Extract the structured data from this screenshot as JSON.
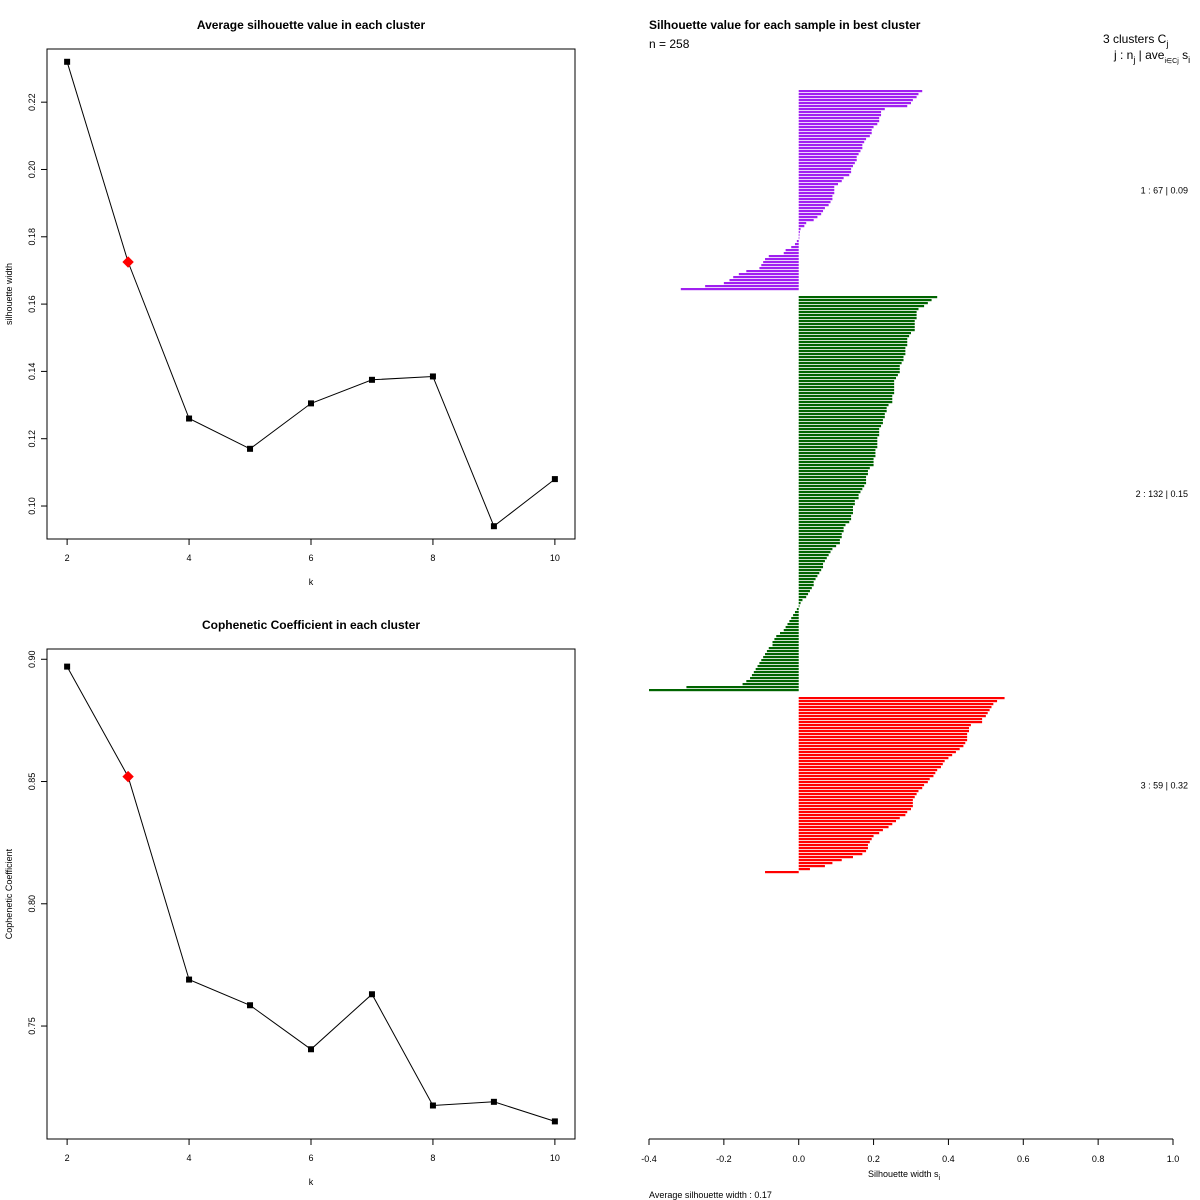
{
  "chart_data": [
    {
      "type": "line",
      "title": "Average silhouette value in each cluster",
      "xlabel": "k",
      "ylabel": "silhouette width",
      "x": [
        2,
        3,
        4,
        5,
        6,
        7,
        8,
        9,
        10
      ],
      "y": [
        0.232,
        0.1725,
        0.126,
        0.117,
        0.1305,
        0.1375,
        0.1385,
        0.094,
        0.108
      ],
      "highlight_x": 3,
      "highlight_color": "#ff0000",
      "xlim": [
        1.67,
        10.33
      ],
      "ylim": [
        0.0902,
        0.2358
      ],
      "xticks": [
        2,
        4,
        6,
        8,
        10
      ],
      "yticks": [
        0.1,
        0.12,
        0.14,
        0.16,
        0.18,
        0.2,
        0.22
      ],
      "xtick_labels": [
        "2",
        "4",
        "6",
        "8",
        "10"
      ],
      "ytick_labels": [
        "0.10",
        "0.12",
        "0.14",
        "0.16",
        "0.18",
        "0.20",
        "0.22"
      ]
    },
    {
      "type": "line",
      "title": "Cophenetic Coefficient in each cluster",
      "xlabel": "k",
      "ylabel": "Cophenetic Coefficient",
      "x": [
        2,
        3,
        4,
        5,
        6,
        7,
        8,
        9,
        10
      ],
      "y": [
        0.897,
        0.852,
        0.769,
        0.7585,
        0.7405,
        0.763,
        0.7175,
        0.719,
        0.711
      ],
      "highlight_x": 3,
      "highlight_color": "#ff0000",
      "xlim": [
        1.67,
        10.33
      ],
      "ylim": [
        0.7038,
        0.9042
      ],
      "xticks": [
        2,
        4,
        6,
        8,
        10
      ],
      "yticks": [
        0.75,
        0.8,
        0.85,
        0.9
      ],
      "xtick_labels": [
        "2",
        "4",
        "6",
        "8",
        "10"
      ],
      "ytick_labels": [
        "0.75",
        "0.80",
        "0.85",
        "0.90"
      ]
    },
    {
      "type": "bar",
      "orientation": "horizontal",
      "title": "Silhouette value for each sample in best cluster",
      "subtitle": "n = 258",
      "header_line1": "3  clusters  C",
      "header_line1_sub": "j",
      "header_line2": "j :  n",
      "header_line2_sub": "j",
      "header_line2_rest": " | ave",
      "header_line2_sub2": "i∈Cj",
      "header_line2_end": " s",
      "header_line2_sub3": "i",
      "xlabel": "Silhouette width s",
      "xlabel_sub": "i",
      "footer": "Average silhouette width :  0.17",
      "xlim": [
        -0.4,
        1.0
      ],
      "xticks": [
        -0.4,
        -0.2,
        0.0,
        0.2,
        0.4,
        0.6,
        0.8,
        1.0
      ],
      "xtick_labels": [
        "-0.4",
        "-0.2",
        "0.0",
        "0.2",
        "0.4",
        "0.6",
        "0.8",
        "1.0"
      ],
      "series": [
        {
          "cluster": 1,
          "n": 67,
          "avg": 0.09,
          "label": "1 :   67  |  0.09",
          "color": "#a020f0",
          "values": [
            0.33,
            0.32,
            0.315,
            0.305,
            0.3,
            0.29,
            0.23,
            0.22,
            0.22,
            0.215,
            0.215,
            0.21,
            0.2,
            0.195,
            0.195,
            0.19,
            0.18,
            0.175,
            0.17,
            0.17,
            0.165,
            0.16,
            0.155,
            0.155,
            0.15,
            0.145,
            0.14,
            0.14,
            0.135,
            0.12,
            0.115,
            0.105,
            0.095,
            0.095,
            0.095,
            0.09,
            0.09,
            0.085,
            0.08,
            0.07,
            0.065,
            0.06,
            0.05,
            0.04,
            0.02,
            0.015,
            0.005,
            0.003,
            0.002,
            0.001,
            -0.005,
            -0.01,
            -0.02,
            -0.035,
            -0.04,
            -0.08,
            -0.09,
            -0.095,
            -0.1,
            -0.105,
            -0.14,
            -0.16,
            -0.175,
            -0.185,
            -0.2,
            -0.25,
            -0.315
          ]
        },
        {
          "cluster": 2,
          "n": 132,
          "avg": 0.15,
          "label": "2 :   132  |  0.15",
          "color": "#006400",
          "values": [
            0.37,
            0.355,
            0.345,
            0.335,
            0.32,
            0.315,
            0.315,
            0.315,
            0.31,
            0.31,
            0.31,
            0.31,
            0.3,
            0.295,
            0.29,
            0.29,
            0.29,
            0.285,
            0.285,
            0.285,
            0.28,
            0.28,
            0.275,
            0.27,
            0.27,
            0.27,
            0.265,
            0.26,
            0.255,
            0.255,
            0.255,
            0.255,
            0.255,
            0.25,
            0.25,
            0.25,
            0.24,
            0.235,
            0.235,
            0.23,
            0.23,
            0.225,
            0.225,
            0.22,
            0.215,
            0.215,
            0.215,
            0.21,
            0.21,
            0.21,
            0.21,
            0.205,
            0.205,
            0.205,
            0.2,
            0.2,
            0.2,
            0.19,
            0.185,
            0.185,
            0.18,
            0.18,
            0.18,
            0.175,
            0.17,
            0.165,
            0.16,
            0.16,
            0.15,
            0.15,
            0.145,
            0.145,
            0.145,
            0.14,
            0.14,
            0.135,
            0.125,
            0.12,
            0.12,
            0.115,
            0.115,
            0.11,
            0.11,
            0.1,
            0.09,
            0.085,
            0.08,
            0.075,
            0.07,
            0.065,
            0.065,
            0.06,
            0.055,
            0.05,
            0.045,
            0.04,
            0.04,
            0.035,
            0.03,
            0.025,
            0.02,
            0.01,
            0.005,
            0.002,
            -0.005,
            -0.01,
            -0.015,
            -0.02,
            -0.025,
            -0.03,
            -0.035,
            -0.04,
            -0.05,
            -0.06,
            -0.065,
            -0.07,
            -0.07,
            -0.08,
            -0.085,
            -0.09,
            -0.095,
            -0.1,
            -0.105,
            -0.11,
            -0.115,
            -0.12,
            -0.125,
            -0.13,
            -0.14,
            -0.15,
            -0.3,
            -0.4
          ]
        },
        {
          "cluster": 3,
          "n": 59,
          "avg": 0.32,
          "label": "3 :   59  |  0.32",
          "color": "#ff0000",
          "values": [
            0.55,
            0.53,
            0.52,
            0.515,
            0.51,
            0.505,
            0.5,
            0.49,
            0.49,
            0.46,
            0.455,
            0.455,
            0.45,
            0.45,
            0.45,
            0.445,
            0.44,
            0.43,
            0.42,
            0.41,
            0.4,
            0.39,
            0.385,
            0.38,
            0.37,
            0.365,
            0.36,
            0.35,
            0.345,
            0.335,
            0.33,
            0.32,
            0.315,
            0.31,
            0.305,
            0.305,
            0.305,
            0.3,
            0.29,
            0.285,
            0.27,
            0.26,
            0.25,
            0.24,
            0.225,
            0.215,
            0.2,
            0.195,
            0.19,
            0.185,
            0.185,
            0.18,
            0.17,
            0.145,
            0.115,
            0.09,
            0.07,
            0.03,
            -0.09
          ]
        }
      ]
    }
  ]
}
